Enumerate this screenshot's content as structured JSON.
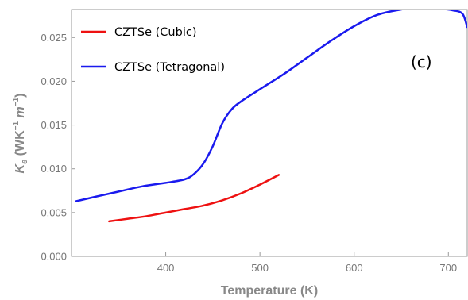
{
  "chart_data": {
    "type": "line",
    "title": "",
    "xlabel": "Temperature (K)",
    "ylabel": {
      "base": "K",
      "sub": "e",
      "units_open": " (WK",
      "sup1": "−1",
      "units_mid": " m",
      "sup2": "−1",
      "units_close": ")"
    },
    "panel_label": "(c)",
    "xlim": [
      300,
      720
    ],
    "ylim": [
      0,
      0.0282
    ],
    "xticks": [
      {
        "value": 400,
        "label": "400"
      },
      {
        "value": 500,
        "label": "500"
      },
      {
        "value": 600,
        "label": "600"
      },
      {
        "value": 700,
        "label": "700"
      }
    ],
    "yticks": [
      {
        "value": 0.0,
        "label": "0.000"
      },
      {
        "value": 0.005,
        "label": "0.005"
      },
      {
        "value": 0.01,
        "label": "0.010"
      },
      {
        "value": 0.015,
        "label": "0.015"
      },
      {
        "value": 0.02,
        "label": "0.020"
      },
      {
        "value": 0.025,
        "label": "0.025"
      }
    ],
    "grid": false,
    "legend_position": "top-left",
    "series": [
      {
        "name": "CZTSe (Cubic)",
        "color": "#ee1111",
        "x": [
          340,
          360,
          380,
          400,
          420,
          440,
          460,
          480,
          500,
          520
        ],
        "y": [
          0.004,
          0.0043,
          0.0046,
          0.005,
          0.0054,
          0.0058,
          0.0064,
          0.0072,
          0.0082,
          0.0093
        ]
      },
      {
        "name": "CZTSe (Tetragonal)",
        "color": "#1a1aee",
        "x": [
          305,
          325,
          350,
          375,
          400,
          420,
          430,
          440,
          450,
          460,
          470,
          480,
          500,
          525,
          550,
          575,
          600,
          625,
          650,
          670,
          690,
          705,
          715,
          720
        ],
        "y": [
          0.0063,
          0.0068,
          0.0074,
          0.008,
          0.0084,
          0.0088,
          0.0094,
          0.0106,
          0.0126,
          0.0152,
          0.0168,
          0.0177,
          0.0191,
          0.0208,
          0.0227,
          0.0246,
          0.0263,
          0.0276,
          0.0282,
          0.0284,
          0.0283,
          0.0281,
          0.0277,
          0.0262
        ]
      }
    ]
  }
}
